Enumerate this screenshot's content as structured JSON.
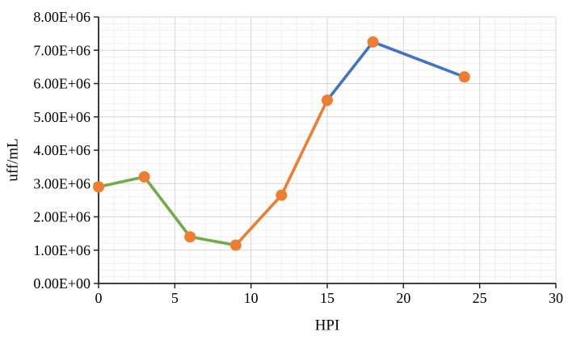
{
  "colors": {
    "background": "#ffffff",
    "axis": "#262626",
    "grid_major": "#d6d6d6",
    "grid_minor": "#f0f0f0",
    "marker": "#ed7d31",
    "segment_green": "#70ad47",
    "segment_orange": "#ed7d31",
    "segment_blue": "#4472c4",
    "text": "#000000"
  },
  "chart_data": {
    "type": "line",
    "title": "",
    "xlabel": "HPI",
    "ylabel": "uff/mL",
    "xlim": [
      0,
      30
    ],
    "ylim": [
      0,
      8000000
    ],
    "x_major_step": 5,
    "x_minor_step": 1,
    "y_major_step": 1000000,
    "y_minor_step": 200000,
    "grid": "major-and-minor",
    "legend_position": "none",
    "x": [
      0,
      3,
      6,
      9,
      12,
      15,
      18,
      24
    ],
    "y": [
      2900000,
      3200000,
      1400000,
      1150000,
      2650000,
      5500000,
      7250000,
      6200000
    ],
    "marker": {
      "shape": "circle",
      "color": "#ed7d31",
      "radius_px": 7
    },
    "segments": [
      {
        "name": "segment-1-green",
        "color": "#70ad47",
        "point_indices": [
          0,
          1,
          2,
          3
        ]
      },
      {
        "name": "segment-2-orange",
        "color": "#ed7d31",
        "point_indices": [
          3,
          4,
          5
        ]
      },
      {
        "name": "segment-3-blue",
        "color": "#4472c4",
        "point_indices": [
          5,
          6,
          7
        ]
      }
    ],
    "x_ticks": [
      {
        "value": 0,
        "label": "0"
      },
      {
        "value": 5,
        "label": "5"
      },
      {
        "value": 10,
        "label": "10"
      },
      {
        "value": 15,
        "label": "15"
      },
      {
        "value": 20,
        "label": "20"
      },
      {
        "value": 25,
        "label": "25"
      },
      {
        "value": 30,
        "label": "30"
      }
    ],
    "y_ticks": [
      {
        "value": 0,
        "label": "0.00E+00"
      },
      {
        "value": 1000000,
        "label": "1.00E+06"
      },
      {
        "value": 2000000,
        "label": "2.00E+06"
      },
      {
        "value": 3000000,
        "label": "3.00E+06"
      },
      {
        "value": 4000000,
        "label": "4.00E+06"
      },
      {
        "value": 5000000,
        "label": "5.00E+06"
      },
      {
        "value": 6000000,
        "label": "6.00E+06"
      },
      {
        "value": 7000000,
        "label": "7.00E+06"
      },
      {
        "value": 8000000,
        "label": "8.00E+06"
      }
    ]
  }
}
